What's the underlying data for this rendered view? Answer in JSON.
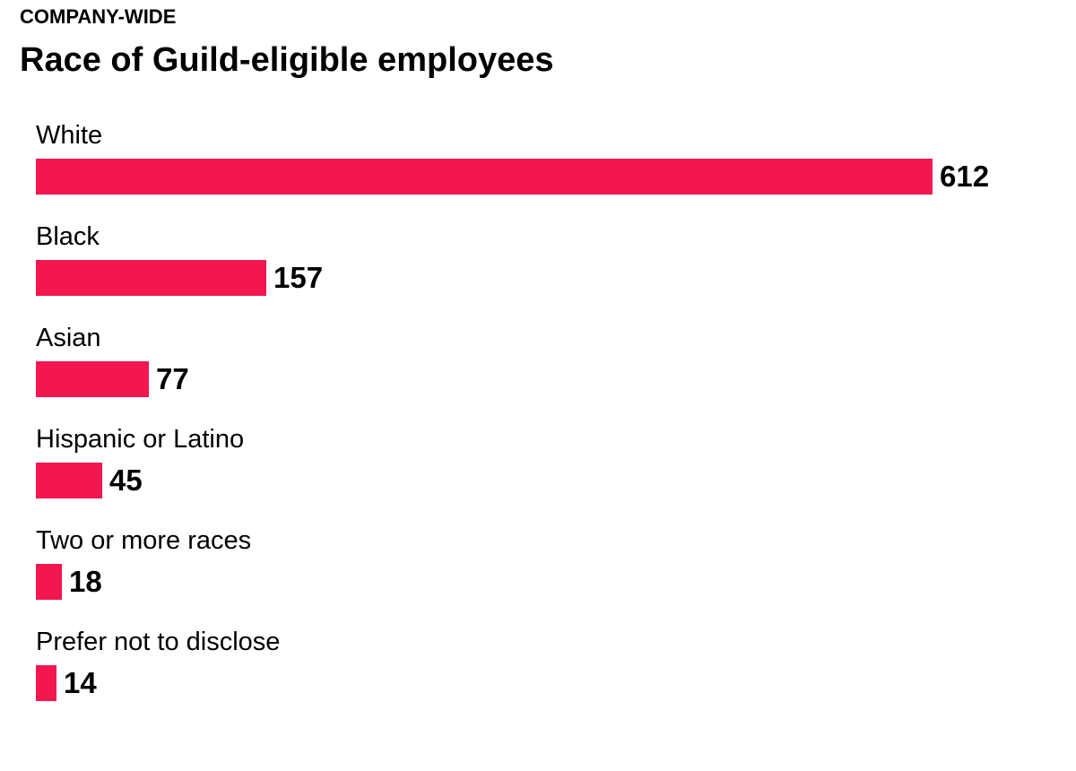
{
  "header": {
    "kicker": "COMPANY-WIDE",
    "title": "Race of Guild-eligible employees"
  },
  "colors": {
    "bar": "#f2174f"
  },
  "chart_data": {
    "type": "bar",
    "orientation": "horizontal",
    "title": "Race of Guild-eligible employees",
    "subtitle": "COMPANY-WIDE",
    "categories": [
      "White",
      "Black",
      "Asian",
      "Hispanic or Latino",
      "Two or more races",
      "Prefer not to disclose"
    ],
    "values": [
      612,
      157,
      77,
      45,
      18,
      14
    ],
    "value_labels": [
      "612",
      "157",
      "77",
      "45",
      "18",
      "14"
    ],
    "xlim": [
      0,
      612
    ],
    "grid": false,
    "legend": "none"
  }
}
